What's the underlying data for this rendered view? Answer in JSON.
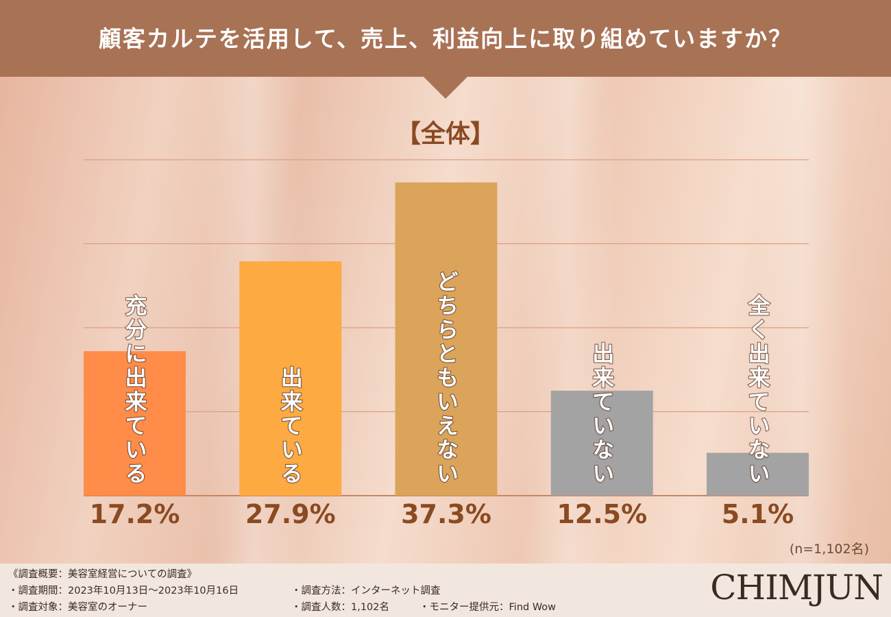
{
  "header": {
    "title": "顧客カルテを活用して、売上、利益向上に取り組めていますか？"
  },
  "chart_data": {
    "type": "bar",
    "title": "【全体】",
    "categories": [
      "充分に出来ている",
      "出来ている",
      "どちらともいえない",
      "出来ていない",
      "全く出来ていない"
    ],
    "values": [
      17.2,
      27.9,
      37.3,
      12.5,
      5.1
    ],
    "value_labels": [
      "17.2%",
      "27.9%",
      "37.3%",
      "12.5%",
      "5.1%"
    ],
    "colors": [
      "#ff8c48",
      "#fdaa42",
      "#dca45a",
      "#a3a3a3",
      "#a3a3a3"
    ],
    "ylim": [
      0,
      40
    ],
    "grid": true,
    "note": "(n=1,102名)"
  },
  "footer": {
    "line1": "《調査概要：美容室経営についての調査》",
    "line2_left": "・調査期間：2023年10月13日〜2023年10月16日",
    "line2_right": "・調査方法：インターネット調査",
    "line3_left": "・調査対象：美容室のオーナー",
    "line3_mid": "・調査人数：1,102名",
    "line3_right": "・モニター提供元：Find Wow",
    "logo": "CHIMJUN"
  }
}
